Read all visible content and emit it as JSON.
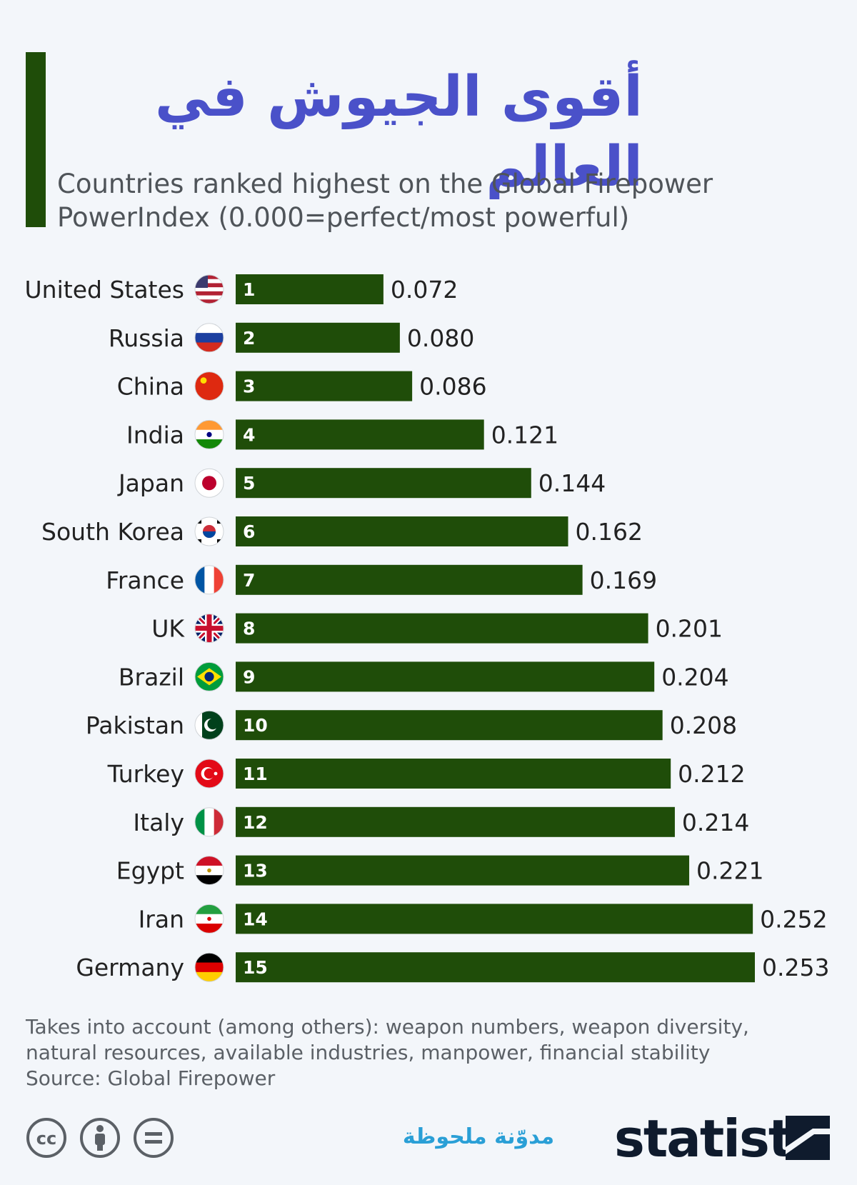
{
  "title": "أقوى الجيوش في العالم",
  "subtitle_lines": [
    "Countries ranked highest on the Global Firepower",
    "PowerIndex (0.000=perfect/most powerful)"
  ],
  "colors": {
    "bar": "#1f4d09",
    "title": "#4a51c9",
    "accent": "#1f4d09",
    "text": "#222222",
    "blog": "#2a9fd6"
  },
  "chart_data": {
    "type": "bar",
    "orientation": "horizontal",
    "categories": [
      "United States",
      "Russia",
      "China",
      "India",
      "Japan",
      "South Korea",
      "France",
      "UK",
      "Brazil",
      "Pakistan",
      "Turkey",
      "Italy",
      "Egypt",
      "Iran",
      "Germany"
    ],
    "ranks": [
      "1",
      "2",
      "3",
      "4",
      "5",
      "6",
      "7",
      "8",
      "9",
      "10",
      "11",
      "12",
      "13",
      "14",
      "15"
    ],
    "values": [
      0.072,
      0.08,
      0.086,
      0.121,
      0.144,
      0.162,
      0.169,
      0.201,
      0.204,
      0.208,
      0.212,
      0.214,
      0.221,
      0.252,
      0.253
    ],
    "value_labels": [
      "0.072",
      "0.080",
      "0.086",
      "0.121",
      "0.144",
      "0.162",
      "0.169",
      "0.201",
      "0.204",
      "0.208",
      "0.212",
      "0.214",
      "0.221",
      "0.252",
      "0.253"
    ],
    "flags": [
      "us-flag-icon",
      "russia-flag-icon",
      "china-flag-icon",
      "india-flag-icon",
      "japan-flag-icon",
      "south-korea-flag-icon",
      "france-flag-icon",
      "uk-flag-icon",
      "brazil-flag-icon",
      "pakistan-flag-icon",
      "turkey-flag-icon",
      "italy-flag-icon",
      "egypt-flag-icon",
      "iran-flag-icon",
      "germany-flag-icon"
    ],
    "xlim": [
      0,
      0.253
    ],
    "grid": false,
    "legend": "none"
  },
  "footnote_lines": [
    "Takes into account (among others): weapon numbers, weapon diversity,",
    "natural resources, available industries, manpower, financial stability",
    "Source: Global Firepower"
  ],
  "license_icons": [
    "cc-icon",
    "attribution-icon",
    "no-derivatives-icon"
  ],
  "blog_name": "مدوّنة ملحوظة",
  "brand": "statista",
  "brand_icon": "statista-logo-icon"
}
